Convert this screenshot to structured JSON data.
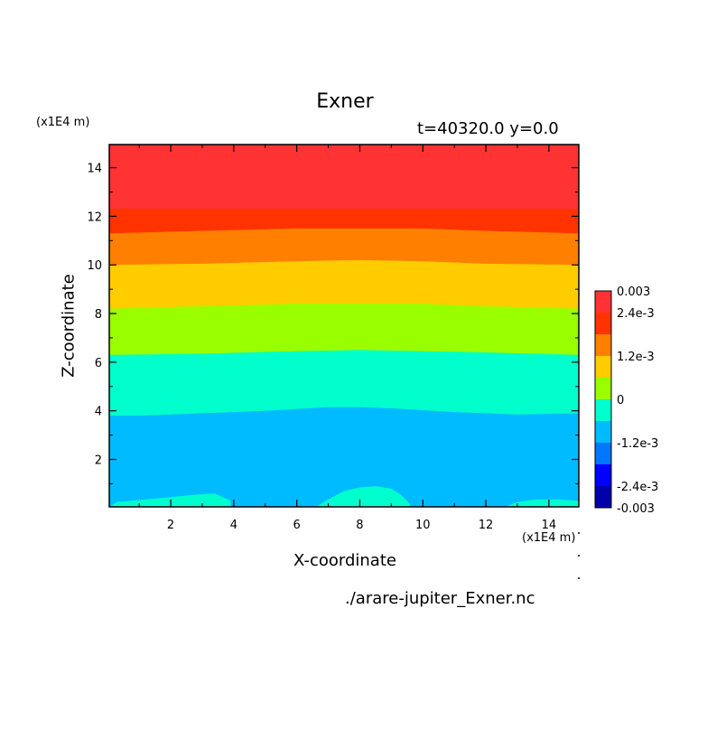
{
  "header": {
    "title": "Exner",
    "subtitle": "t=40320.0 y=0.0",
    "y_unit": "(x1E4 m)",
    "x_unit": "(x1E4 m)",
    "source_file": "./arare-jupiter_Exner.nc"
  },
  "chart_data": {
    "type": "heatmap",
    "title": "Exner",
    "subtitle": "t=40320.0 y=0.0",
    "xlabel": "X-coordinate",
    "ylabel": "Z-coordinate",
    "xlim": [
      0.05,
      14.95
    ],
    "ylim": [
      0.05,
      14.95
    ],
    "xticks": [
      2,
      4,
      6,
      8,
      10,
      12,
      14
    ],
    "yticks": [
      2,
      4,
      6,
      8,
      10,
      12,
      14
    ],
    "colorbar": {
      "levels": [
        -0.003,
        -0.0024,
        -0.0018,
        -0.0012,
        -0.0006,
        0,
        0.0006,
        0.0012,
        0.0018,
        0.0024,
        0.003
      ],
      "colors": [
        "#0000aa",
        "#0000ff",
        "#0077ff",
        "#00bbff",
        "#00ffcc",
        "#99ff00",
        "#ffcc00",
        "#ff7f00",
        "#ff3300",
        "#ff3333"
      ],
      "tick_labels": [
        {
          "label": "0.003",
          "value": 0.003
        },
        {
          "label": "2.4e-3",
          "value": 0.0024
        },
        {
          "label": "1.2e-3",
          "value": 0.0012
        },
        {
          "label": "0",
          "value": 0
        },
        {
          "label": "-1.2e-3",
          "value": -0.0012
        },
        {
          "label": "-2.4e-3",
          "value": -0.0024
        },
        {
          "label": "-0.003",
          "value": -0.003
        }
      ]
    },
    "band_boundaries": [
      {
        "name": "boundary-red-orange",
        "upper_color": "#ff3333",
        "lower_color": "#ff3300",
        "x": [
          0.05,
          3,
          7,
          11,
          14.95
        ],
        "z": [
          12.3,
          12.3,
          12.3,
          12.3,
          12.3
        ]
      },
      {
        "name": "boundary-orange-2",
        "upper_color": "#ff3300",
        "lower_color": "#ff7f00",
        "x": [
          0.05,
          3,
          6,
          8,
          10,
          12,
          14.95
        ],
        "z": [
          11.3,
          11.4,
          11.5,
          11.5,
          11.5,
          11.4,
          11.3
        ]
      },
      {
        "name": "boundary-orange-yellow",
        "upper_color": "#ff7f00",
        "lower_color": "#ffcc00",
        "x": [
          0.05,
          3,
          6,
          8,
          10,
          12,
          14.95
        ],
        "z": [
          10.0,
          10.05,
          10.15,
          10.2,
          10.15,
          10.05,
          10.0
        ]
      },
      {
        "name": "boundary-yellow-green",
        "upper_color": "#ffcc00",
        "lower_color": "#99ff00",
        "x": [
          0.05,
          3,
          6,
          8,
          10,
          12,
          14.95
        ],
        "z": [
          8.2,
          8.3,
          8.4,
          8.4,
          8.4,
          8.3,
          8.2
        ]
      },
      {
        "name": "boundary-green-aqua",
        "upper_color": "#99ff00",
        "lower_color": "#00ffcc",
        "x": [
          0.05,
          3,
          6,
          8,
          10,
          12,
          14.95
        ],
        "z": [
          6.3,
          6.35,
          6.45,
          6.5,
          6.45,
          6.4,
          6.3
        ]
      },
      {
        "name": "boundary-aqua-blue",
        "upper_color": "#00ffcc",
        "lower_color": "#00bbff",
        "x": [
          0.05,
          1,
          3,
          5,
          7,
          8,
          9,
          11,
          13,
          14.95
        ],
        "z": [
          3.8,
          3.8,
          3.9,
          4.0,
          4.15,
          4.15,
          4.1,
          3.95,
          3.85,
          3.9
        ]
      }
    ],
    "near_surface_patches": [
      {
        "name": "aqua-patch-left",
        "color": "#00ffcc",
        "x": [
          0.05,
          0.3,
          1.2,
          2.0,
          2.8,
          3.4,
          3.9,
          3.9,
          0.05
        ],
        "z": [
          0.05,
          0.25,
          0.35,
          0.45,
          0.55,
          0.6,
          0.3,
          0.05,
          0.05
        ]
      },
      {
        "name": "aqua-patch-center",
        "color": "#00ffcc",
        "x": [
          6.6,
          7.0,
          7.5,
          8.0,
          8.5,
          9.0,
          9.3,
          9.6,
          9.6,
          6.6
        ],
        "z": [
          0.05,
          0.35,
          0.7,
          0.85,
          0.9,
          0.8,
          0.55,
          0.15,
          0.05,
          0.05
        ]
      },
      {
        "name": "aqua-patch-right",
        "color": "#00ffcc",
        "x": [
          12.6,
          13.0,
          13.6,
          14.3,
          14.95,
          14.95,
          12.6
        ],
        "z": [
          0.05,
          0.25,
          0.35,
          0.35,
          0.3,
          0.05,
          0.05
        ]
      }
    ]
  }
}
